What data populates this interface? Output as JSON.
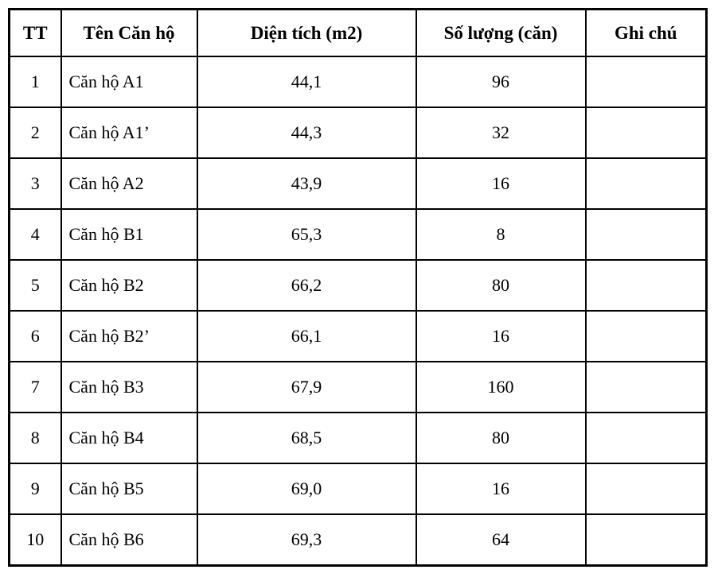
{
  "table": {
    "columns": [
      "TT",
      "Tên Căn hộ",
      "Diện tích (m2)",
      "Số lượng (căn)",
      "Ghi chú"
    ],
    "rows": [
      {
        "tt": "1",
        "name": "Căn hộ A1",
        "area": "44,1",
        "qty": "96",
        "note": ""
      },
      {
        "tt": "2",
        "name": "Căn hộ A1’",
        "area": "44,3",
        "qty": "32",
        "note": ""
      },
      {
        "tt": "3",
        "name": "Căn hộ A2",
        "area": "43,9",
        "qty": "16",
        "note": ""
      },
      {
        "tt": "4",
        "name": "Căn hộ B1",
        "area": "65,3",
        "qty": "8",
        "note": ""
      },
      {
        "tt": "5",
        "name": "Căn hộ B2",
        "area": "66,2",
        "qty": "80",
        "note": ""
      },
      {
        "tt": "6",
        "name": "Căn hộ B2’",
        "area": "66,1",
        "qty": "16",
        "note": ""
      },
      {
        "tt": "7",
        "name": "Căn hộ B3",
        "area": "67,9",
        "qty": "160",
        "note": ""
      },
      {
        "tt": "8",
        "name": "Căn hộ B4",
        "area": "68,5",
        "qty": "80",
        "note": ""
      },
      {
        "tt": "9",
        "name": "Căn hộ B5",
        "area": "69,0",
        "qty": "16",
        "note": ""
      },
      {
        "tt": "10",
        "name": "Căn hộ B6",
        "area": "69,3",
        "qty": "64",
        "note": ""
      }
    ]
  }
}
